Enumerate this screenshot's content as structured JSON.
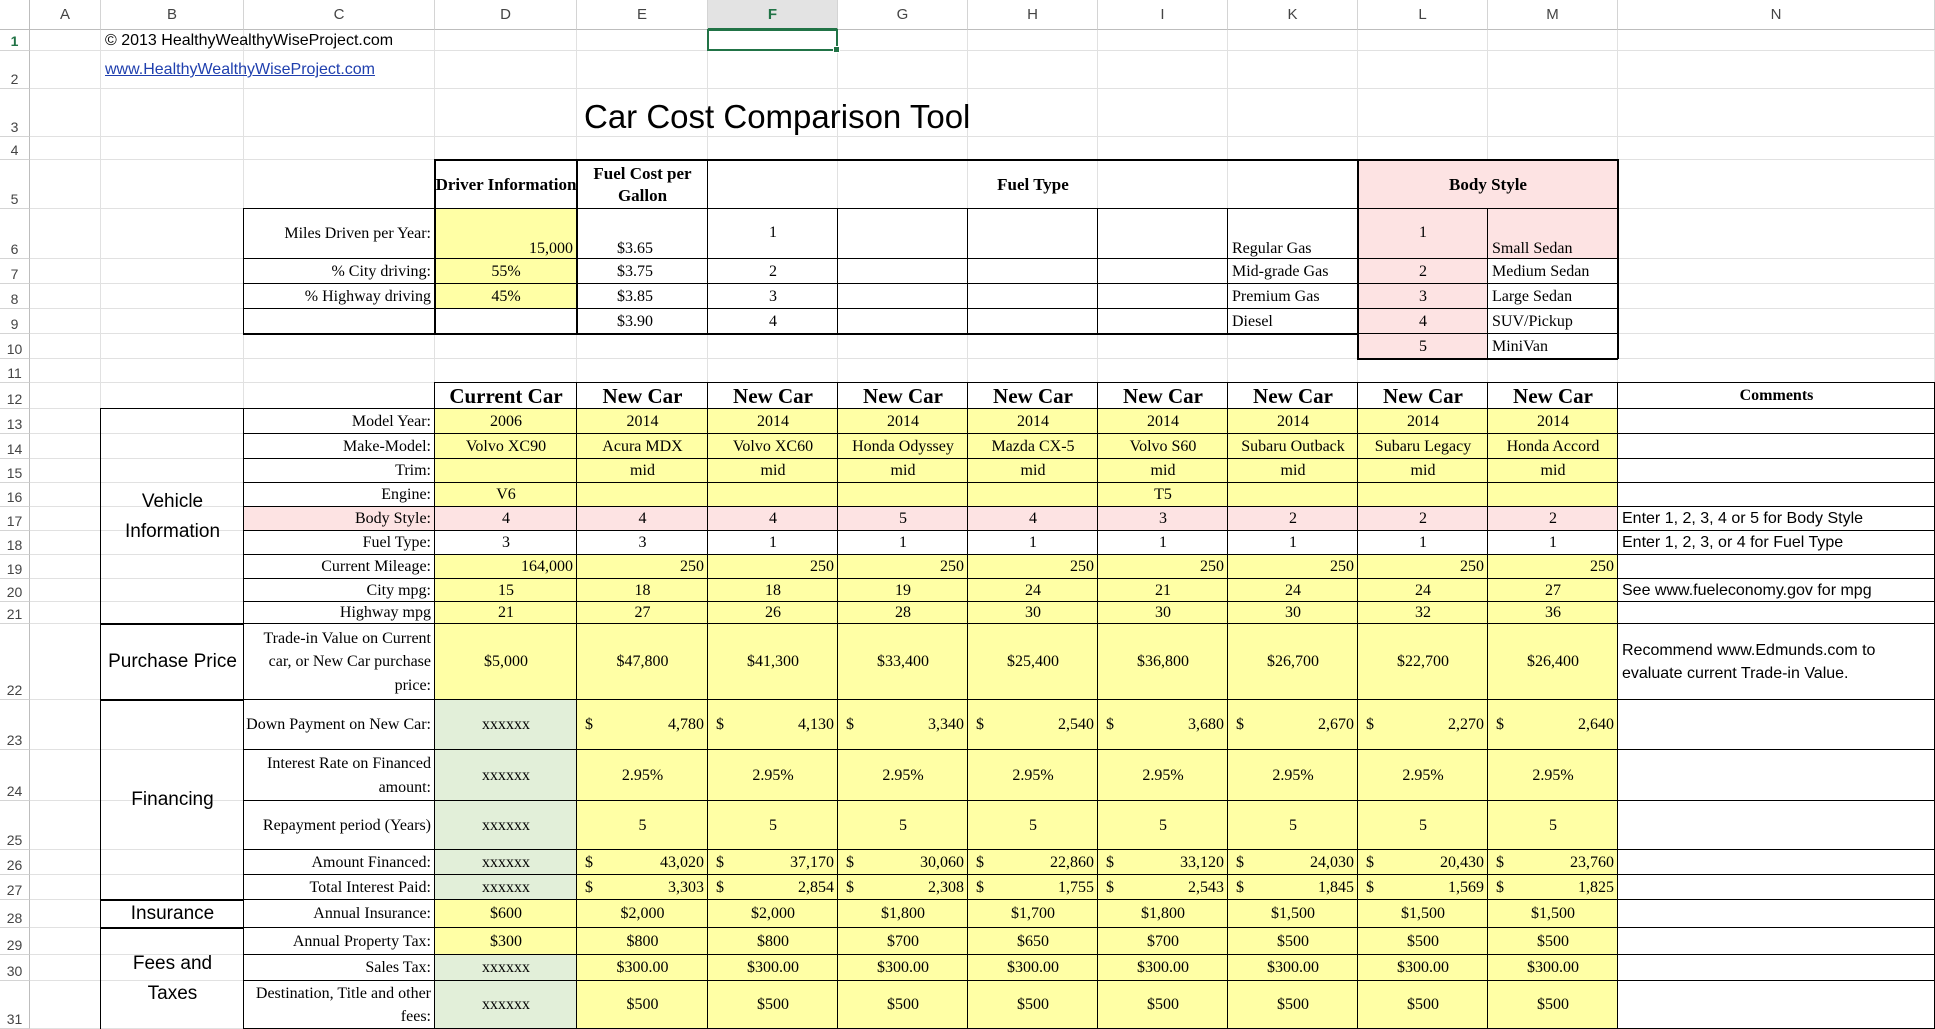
{
  "columns": [
    "A",
    "B",
    "C",
    "D",
    "E",
    "F",
    "G",
    "H",
    "I",
    "K",
    "L",
    "M",
    "N"
  ],
  "selected_column": "F",
  "rows": [
    "1",
    "2",
    "3",
    "4",
    "5",
    "6",
    "7",
    "8",
    "9",
    "10",
    "11",
    "12",
    "13",
    "14",
    "15",
    "16",
    "17",
    "18",
    "19",
    "20",
    "21",
    "22",
    "23",
    "24",
    "25",
    "26",
    "27",
    "28",
    "29",
    "30",
    "31"
  ],
  "selected_row": "1",
  "copyright": "© 2013 HealthyWealthyWiseProject.com",
  "website": "www.HealthyWealthyWiseProject.com",
  "title": "Car Cost Comparison Tool",
  "top": {
    "driver_info_hdr": "Driver Information",
    "fuel_cost_hdr": "Fuel Cost per Gallon",
    "fuel_type_hdr": "Fuel Type",
    "body_style_hdr": "Body Style",
    "miles_label": "Miles Driven per Year:",
    "miles_value": "15,000",
    "city_label": "% City driving:",
    "city_value": "55%",
    "hwy_label": "% Highway driving",
    "hwy_value": "45%",
    "fuel_costs": [
      "$3.65",
      "$3.75",
      "$3.85",
      "$3.90"
    ],
    "fuel_nums": [
      "1",
      "2",
      "3",
      "4"
    ],
    "fuel_names": [
      "Regular Gas",
      "Mid-grade Gas",
      "Premium Gas",
      "Diesel"
    ],
    "body_nums": [
      "1",
      "2",
      "3",
      "4",
      "5"
    ],
    "body_names": [
      "Small Sedan",
      "Medium Sedan",
      "Large Sedan",
      "SUV/Pickup",
      "MiniVan"
    ]
  },
  "cars": {
    "headers": [
      "Current Car",
      "New Car",
      "New Car",
      "New Car",
      "New Car",
      "New Car",
      "New Car",
      "New Car",
      "New Car"
    ],
    "comments_hdr": "Comments",
    "model_year": [
      "2006",
      "2014",
      "2014",
      "2014",
      "2014",
      "2014",
      "2014",
      "2014",
      "2014"
    ],
    "make_model": [
      "Volvo XC90",
      "Acura MDX",
      "Volvo XC60",
      "Honda Odyssey",
      "Mazda CX-5",
      "Volvo S60",
      "Subaru Outback",
      "Subaru Legacy",
      "Honda Accord"
    ],
    "trim": [
      "",
      "mid",
      "mid",
      "mid",
      "mid",
      "mid",
      "mid",
      "mid",
      "mid"
    ],
    "engine": [
      "V6",
      "",
      "",
      "",
      "",
      "T5",
      "",
      "",
      ""
    ],
    "body_style": [
      "4",
      "4",
      "4",
      "5",
      "4",
      "3",
      "2",
      "2",
      "2"
    ],
    "fuel_type": [
      "3",
      "3",
      "1",
      "1",
      "1",
      "1",
      "1",
      "1",
      "1"
    ],
    "mileage": [
      "164,000",
      "250",
      "250",
      "250",
      "250",
      "250",
      "250",
      "250",
      "250"
    ],
    "city_mpg": [
      "15",
      "18",
      "18",
      "19",
      "24",
      "21",
      "24",
      "24",
      "27"
    ],
    "hwy_mpg": [
      "21",
      "27",
      "26",
      "28",
      "30",
      "30",
      "30",
      "32",
      "36"
    ],
    "price": [
      "$5,000",
      "$47,800",
      "$41,300",
      "$33,400",
      "$25,400",
      "$36,800",
      "$26,700",
      "$22,700",
      "$26,400"
    ],
    "down": [
      "xxxxxx",
      "4,780",
      "4,130",
      "3,340",
      "2,540",
      "3,680",
      "2,670",
      "2,270",
      "2,640"
    ],
    "rate": [
      "xxxxxx",
      "2.95%",
      "2.95%",
      "2.95%",
      "2.95%",
      "2.95%",
      "2.95%",
      "2.95%",
      "2.95%"
    ],
    "period": [
      "xxxxxx",
      "5",
      "5",
      "5",
      "5",
      "5",
      "5",
      "5",
      "5"
    ],
    "financed": [
      "xxxxxx",
      "43,020",
      "37,170",
      "30,060",
      "22,860",
      "33,120",
      "24,030",
      "20,430",
      "23,760"
    ],
    "interest": [
      "xxxxxx",
      "3,303",
      "2,854",
      "2,308",
      "1,755",
      "2,543",
      "1,845",
      "1,569",
      "1,825"
    ],
    "insurance": [
      "$600",
      "$2,000",
      "$2,000",
      "$1,800",
      "$1,700",
      "$1,800",
      "$1,500",
      "$1,500",
      "$1,500"
    ],
    "prop_tax": [
      "$300",
      "$800",
      "$800",
      "$700",
      "$650",
      "$700",
      "$500",
      "$500",
      "$500"
    ],
    "sales_tax": [
      "xxxxxx",
      "$300.00",
      "$300.00",
      "$300.00",
      "$300.00",
      "$300.00",
      "$300.00",
      "$300.00",
      "$300.00"
    ],
    "dest_fees": [
      "xxxxxx",
      "$500",
      "$500",
      "$500",
      "$500",
      "$500",
      "$500",
      "$500",
      "$500"
    ],
    "dollar_sign": "$"
  },
  "labels": {
    "model_year": "Model Year:",
    "make_model": "Make-Model:",
    "trim": "Trim:",
    "engine": "Engine:",
    "body_style": "Body Style:",
    "fuel_type": "Fuel Type:",
    "mileage": "Current Mileage:",
    "city_mpg": "City mpg:",
    "hwy_mpg": "Highway mpg",
    "price": "Trade-in Value on Current car, or New Car purchase price:",
    "down": "Down Payment on New Car:",
    "rate": "Interest Rate on Financed amount:",
    "period": "Repayment period (Years)",
    "financed": "Amount Financed:",
    "interest": "Total Interest Paid:",
    "insurance": "Annual Insurance:",
    "prop_tax": "Annual Property Tax:",
    "sales_tax": "Sales Tax:",
    "dest_fees": "Destination, Title and other fees:"
  },
  "sections": {
    "vehicle": "Vehicle Information",
    "purchase": "Purchase Price",
    "financing": "Financing",
    "insurance": "Insurance",
    "fees": "Fees and Taxes"
  },
  "comments": {
    "body_style": "Enter 1, 2, 3, 4 or 5 for Body Style",
    "fuel_type": "Enter 1, 2, 3, or 4 for Fuel Type",
    "mpg": "See www.fueleconomy.gov for mpg",
    "price": "Recommend www.Edmunds.com to evaluate current Trade-in Value."
  },
  "colors": {
    "yellow": "#ffffa5",
    "pink": "#fde3e3",
    "green": "#e2efd9",
    "accent": "#217346"
  }
}
